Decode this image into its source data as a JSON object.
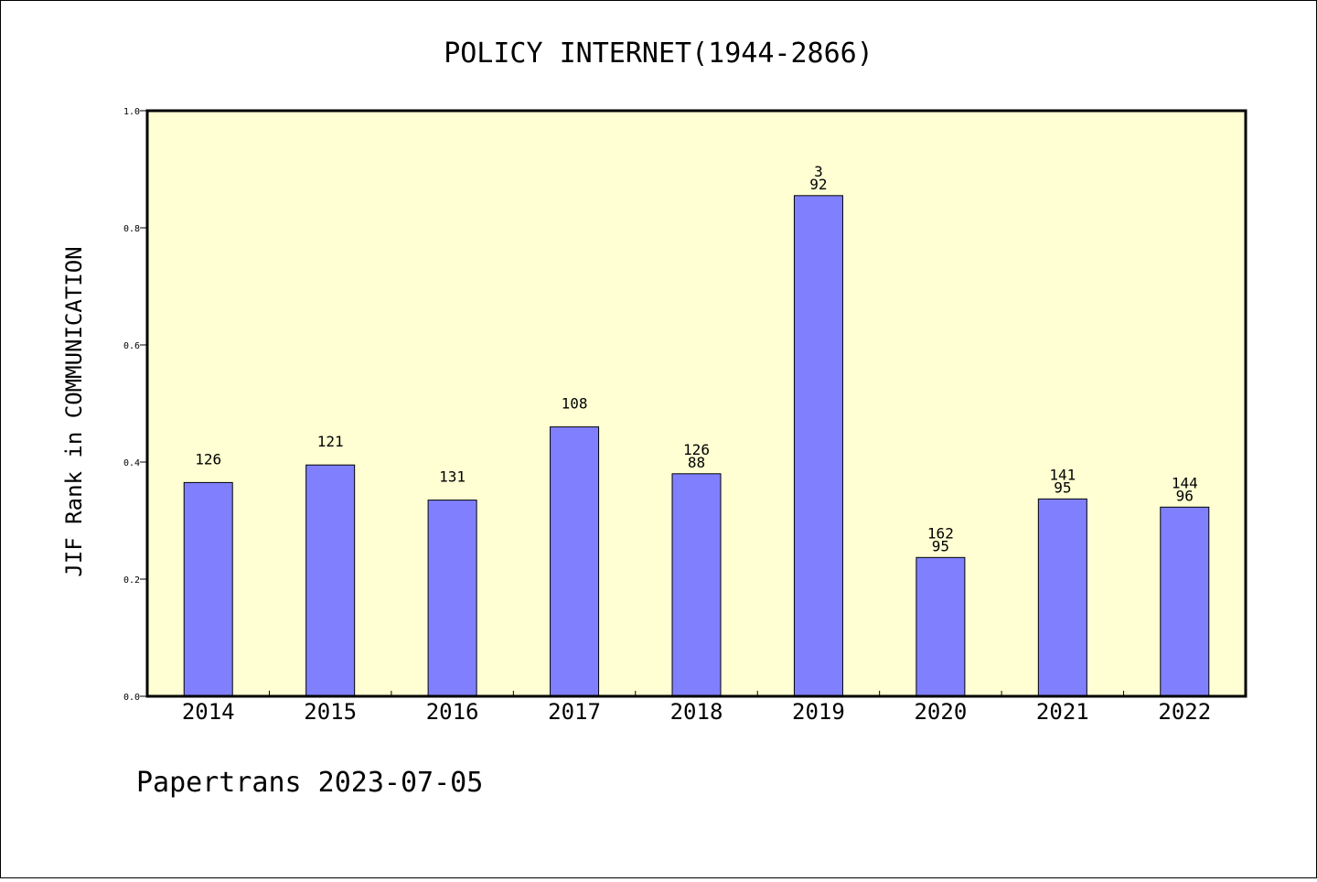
{
  "chart_data": {
    "type": "bar",
    "title": "POLICY INTERNET(1944-2866)",
    "xlabel": "",
    "ylabel": "JIF Rank in COMMUNICATION",
    "categories": [
      "2014",
      "2015",
      "2016",
      "2017",
      "2018",
      "2019",
      "2020",
      "2021",
      "2022"
    ],
    "values": [
      0.365,
      0.395,
      0.335,
      0.46,
      0.38,
      0.855,
      0.237,
      0.337,
      0.323
    ],
    "data_labels": [
      [
        "126"
      ],
      [
        "121"
      ],
      [
        "131"
      ],
      [
        "108"
      ],
      [
        "126",
        "88"
      ],
      [
        "3",
        "92"
      ],
      [
        "162",
        "95"
      ],
      [
        "141",
        "95"
      ],
      [
        "144",
        "96"
      ]
    ],
    "ylim": [
      0,
      1.0
    ],
    "yticks": [
      "0.0",
      "0.2",
      "0.4",
      "0.6",
      "0.8",
      "1.0"
    ],
    "grid": false,
    "colors": {
      "bar": "#8080ff",
      "plot_background": "#ffffd3",
      "axis": "#000000"
    }
  },
  "footer": {
    "text": "Papertrans 2023-07-05"
  }
}
